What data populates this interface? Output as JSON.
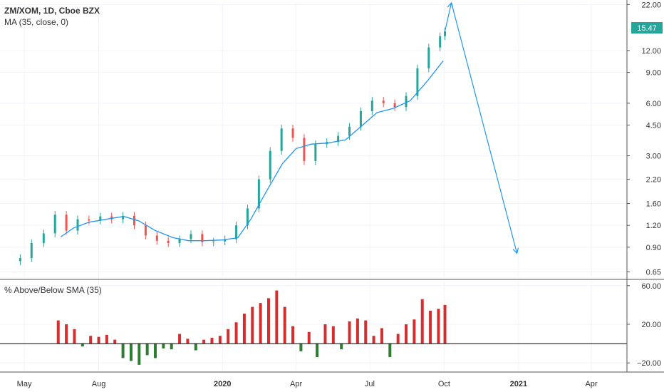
{
  "chart_data": [
    {
      "type": "line",
      "title": "ZM/XOM, 1D, Cboe BZX",
      "indicator_label": "MA (35, close, 0)",
      "last_price_label": "15.47",
      "y_scale": "log",
      "ylim": [
        0.6,
        22.5
      ],
      "yticks": [
        "22.00",
        "12.00",
        "9.00",
        "6.00",
        "4.50",
        "3.00",
        "2.20",
        "1.60",
        "1.20",
        "0.90",
        "0.65"
      ],
      "ytick_values": [
        22,
        12,
        9,
        6,
        4.5,
        3,
        2.2,
        1.6,
        1.2,
        0.9,
        0.65
      ],
      "xticks": [
        "May",
        "Aug",
        "2020",
        "Apr",
        "Jul",
        "Oct",
        "2021",
        "Apr"
      ],
      "xtick_dates": [
        "2019-05-01",
        "2019-08-01",
        "2020-01-01",
        "2020-04-01",
        "2020-07-01",
        "2020-10-01",
        "2021-01-01",
        "2021-04-01"
      ],
      "xlim": [
        "2019-04-01",
        "2021-05-15"
      ],
      "bold_xticks": [
        "2020",
        "2021"
      ],
      "series": [
        {
          "name": "ZM/XOM",
          "kind": "candles",
          "up_color": "#26a69a",
          "down_color": "#ef5350",
          "x": [
            "2019-04-26",
            "2019-05-10",
            "2019-05-25",
            "2019-06-08",
            "2019-06-22",
            "2019-07-06",
            "2019-07-20",
            "2019-08-03",
            "2019-08-17",
            "2019-08-31",
            "2019-09-14",
            "2019-09-28",
            "2019-10-12",
            "2019-10-26",
            "2019-11-09",
            "2019-11-23",
            "2019-12-07",
            "2019-12-21",
            "2020-01-04",
            "2020-01-18",
            "2020-02-01",
            "2020-02-15",
            "2020-02-29",
            "2020-03-14",
            "2020-03-28",
            "2020-04-11",
            "2020-04-25",
            "2020-05-09",
            "2020-05-23",
            "2020-06-06",
            "2020-06-20",
            "2020-07-04",
            "2020-07-18",
            "2020-08-01",
            "2020-08-15",
            "2020-08-29",
            "2020-09-12",
            "2020-09-26",
            "2020-10-02"
          ],
          "close": [
            0.78,
            0.95,
            1.08,
            1.38,
            1.12,
            1.3,
            1.28,
            1.35,
            1.3,
            1.36,
            1.2,
            1.05,
            0.98,
            0.95,
            1.0,
            1.07,
            0.96,
            0.97,
            1.0,
            1.2,
            1.5,
            2.2,
            3.2,
            4.3,
            3.8,
            2.8,
            3.5,
            3.6,
            3.9,
            4.4,
            5.4,
            6.2,
            6.0,
            5.7,
            6.6,
            9.5,
            12.5,
            14.5,
            15.47
          ]
        },
        {
          "name": "MA (35, close, 0)",
          "kind": "line",
          "color": "#2196f3",
          "x": [
            "2019-06-15",
            "2019-07-01",
            "2019-07-20",
            "2019-08-10",
            "2019-09-01",
            "2019-09-20",
            "2019-10-10",
            "2019-11-01",
            "2019-11-20",
            "2019-12-10",
            "2020-01-01",
            "2020-01-20",
            "2020-02-05",
            "2020-02-25",
            "2020-03-15",
            "2020-04-01",
            "2020-04-20",
            "2020-05-10",
            "2020-06-01",
            "2020-06-20",
            "2020-07-10",
            "2020-07-30",
            "2020-08-20",
            "2020-09-10",
            "2020-09-30"
          ],
          "values": [
            1.03,
            1.16,
            1.25,
            1.3,
            1.35,
            1.27,
            1.12,
            1.02,
            0.98,
            0.98,
            0.99,
            1.02,
            1.3,
            1.9,
            2.7,
            3.3,
            3.5,
            3.55,
            3.7,
            4.4,
            5.3,
            5.6,
            6.2,
            8.0,
            10.5
          ]
        },
        {
          "name": "projection",
          "kind": "arrow",
          "color": "#2196f3",
          "x": [
            "2020-10-02",
            "2020-10-10",
            "2020-12-30"
          ],
          "values": [
            15.47,
            22.5,
            0.83
          ]
        }
      ]
    },
    {
      "type": "bar",
      "title": "% Above/Below SMA (35)",
      "ylim": [
        -28,
        65
      ],
      "yticks": [
        "60.00",
        "20.00",
        "−20.00"
      ],
      "ytick_values": [
        60,
        20,
        -20
      ],
      "zero_line": 0,
      "positive_color": "#d32f2f",
      "negative_color": "#2e7d32",
      "x": [
        "2019-06-12",
        "2019-06-22",
        "2019-07-02",
        "2019-07-12",
        "2019-07-22",
        "2019-08-01",
        "2019-08-11",
        "2019-08-21",
        "2019-08-31",
        "2019-09-10",
        "2019-09-20",
        "2019-09-30",
        "2019-10-10",
        "2019-10-20",
        "2019-10-30",
        "2019-11-09",
        "2019-11-19",
        "2019-11-29",
        "2019-12-09",
        "2019-12-19",
        "2019-12-29",
        "2020-01-08",
        "2020-01-18",
        "2020-01-28",
        "2020-02-07",
        "2020-02-17",
        "2020-02-27",
        "2020-03-08",
        "2020-03-18",
        "2020-03-28",
        "2020-04-07",
        "2020-04-17",
        "2020-04-27",
        "2020-05-07",
        "2020-05-17",
        "2020-05-27",
        "2020-06-06",
        "2020-06-16",
        "2020-06-26",
        "2020-07-06",
        "2020-07-16",
        "2020-07-26",
        "2020-08-05",
        "2020-08-15",
        "2020-08-25",
        "2020-09-04",
        "2020-09-14",
        "2020-09-24",
        "2020-10-02"
      ],
      "values": [
        24,
        20,
        15,
        -3,
        8,
        7,
        9,
        4,
        -15,
        -18,
        -22,
        -12,
        -15,
        -5,
        -6,
        10,
        5,
        -7,
        4,
        6,
        8,
        15,
        22,
        31,
        38,
        42,
        47,
        55,
        38,
        18,
        -8,
        12,
        -14,
        20,
        18,
        -6,
        23,
        26,
        24,
        8,
        16,
        -14,
        10,
        20,
        25,
        46,
        34,
        36,
        40
      ]
    }
  ]
}
